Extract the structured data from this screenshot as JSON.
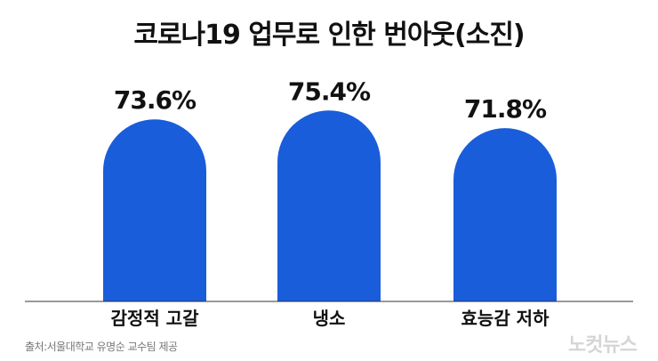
{
  "chart_data": {
    "type": "bar",
    "title": "코로나19 업무로 인한 번아웃(소진)",
    "categories": [
      "감정적 고갈",
      "냉소",
      "효능감 저하"
    ],
    "values": [
      73.6,
      75.4,
      71.8
    ],
    "value_labels": [
      "73.6%",
      "75.4%",
      "71.8%"
    ],
    "ylim": [
      0,
      80
    ],
    "grid": false,
    "legend": "none"
  },
  "source": "출처:서울대학교 유명순 교수팀 제공",
  "logo": "노컷뉴스",
  "colors": {
    "bar": "#1a5ddb",
    "text": "#111111",
    "axis": "#333333"
  }
}
